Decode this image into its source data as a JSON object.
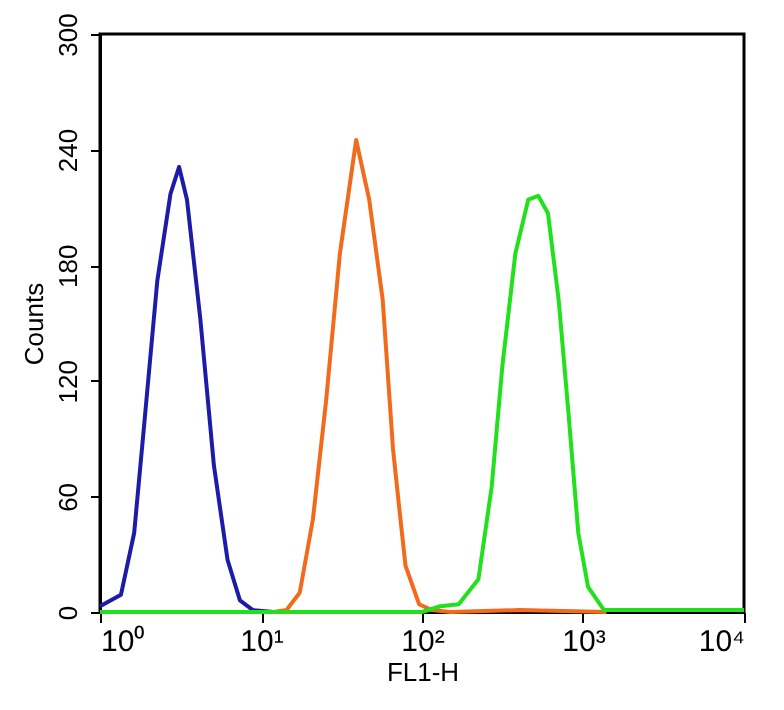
{
  "chart_data": {
    "type": "line",
    "xlabel": "FL1-H",
    "ylabel": "Counts",
    "log": "x",
    "grid": false,
    "marker": "none",
    "line_style": "solid",
    "xlim": [
      1,
      10000
    ],
    "xticks": [
      {
        "value": 1,
        "label": "10⁰"
      },
      {
        "value": 10,
        "label": "10¹"
      },
      {
        "value": 100,
        "label": "10²"
      },
      {
        "value": 1000,
        "label": "10³"
      },
      {
        "value": 10000,
        "label": "10⁴"
      }
    ],
    "ylim": [
      0,
      300
    ],
    "yticks": [
      0,
      60,
      120,
      180,
      240,
      300
    ],
    "series": [
      {
        "color": "#1c1ca8",
        "x": [
          1,
          1.35,
          1.63,
          1.88,
          2.27,
          2.74,
          3.1,
          3.47,
          4.2,
          5.1,
          6.2,
          7.4,
          8.9,
          12
        ],
        "values": [
          3,
          9,
          41,
          97,
          172,
          217,
          231,
          214,
          152,
          76,
          27,
          6,
          1,
          0
        ]
      },
      {
        "color": "#f26a1b",
        "x": [
          12,
          14.4,
          17.4,
          21,
          25.4,
          30.9,
          39,
          47,
          57,
          66,
          72,
          79,
          96,
          115,
          150,
          400,
          1400
        ],
        "values": [
          0,
          1,
          10,
          48,
          110,
          186,
          245,
          214,
          162,
          85,
          55,
          24,
          4,
          1,
          0,
          1,
          0
        ]
      },
      {
        "color": "#22e01e",
        "x": [
          1,
          100,
          130,
          169,
          224,
          271,
          315,
          380,
          457,
          527,
          606,
          706,
          813,
          935,
          1075,
          1350,
          3000,
          10000
        ],
        "values": [
          0,
          0,
          3,
          4,
          17,
          65,
          127,
          186,
          214,
          216,
          207,
          162,
          103,
          41,
          13,
          1,
          1,
          1
        ]
      }
    ]
  }
}
